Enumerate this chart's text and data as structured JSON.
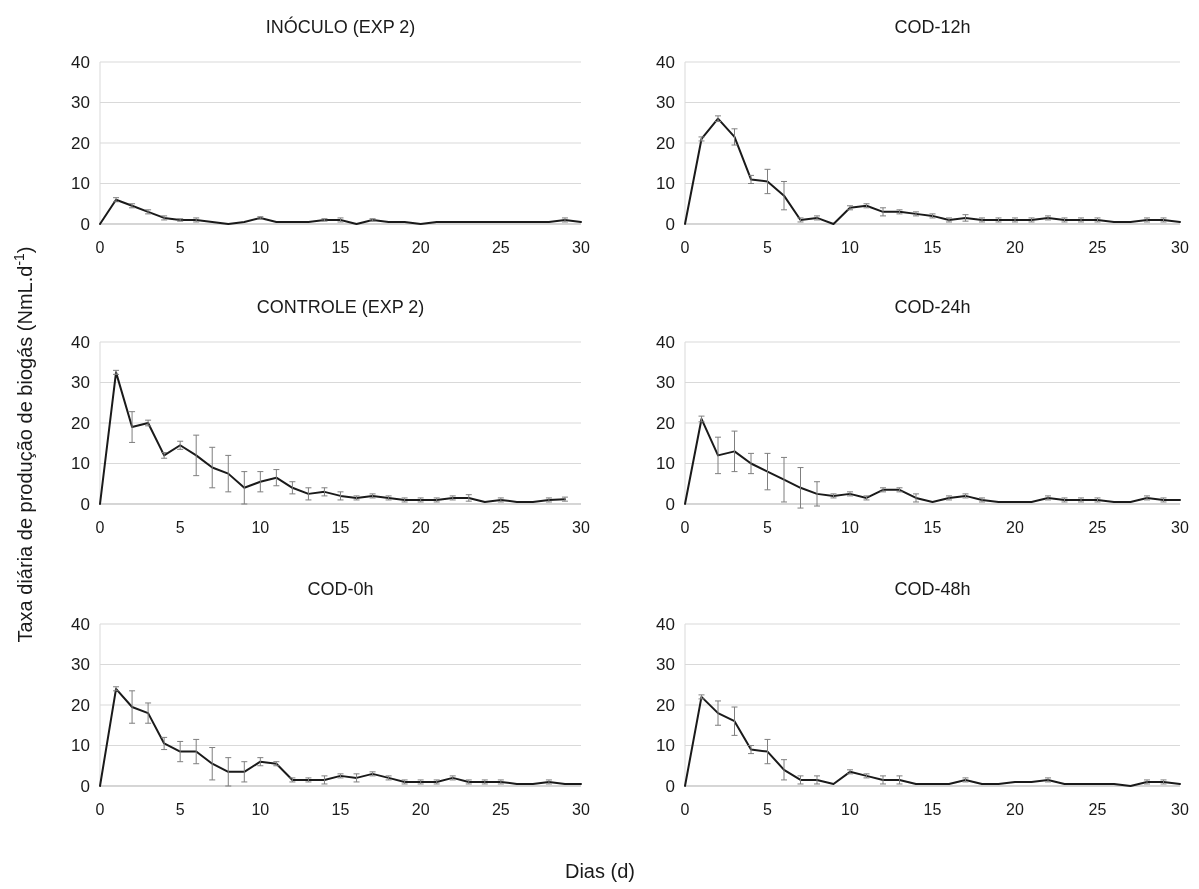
{
  "chart_data": [
    {
      "type": "line",
      "title": "INÓCULO (EXP 2)",
      "xlim": [
        0,
        30
      ],
      "xticks": [
        0,
        5,
        10,
        15,
        20,
        25,
        30
      ],
      "ylim": [
        0,
        40
      ],
      "yticks": [
        0,
        10,
        20,
        30,
        40
      ],
      "grid": "y",
      "x": [
        0,
        1,
        2,
        3,
        4,
        5,
        6,
        7,
        8,
        9,
        10,
        11,
        12,
        13,
        14,
        15,
        16,
        17,
        18,
        19,
        20,
        21,
        22,
        23,
        24,
        25,
        26,
        27,
        28,
        29,
        30
      ],
      "series": [
        {
          "color": "#1a1a1a",
          "values": [
            0,
            6,
            4.5,
            3,
            1.5,
            1,
            1,
            0.5,
            0,
            0.5,
            1.5,
            0.5,
            0.5,
            0.5,
            1,
            1,
            0,
            1,
            0.5,
            0.5,
            0,
            0.5,
            0.5,
            0.5,
            0.5,
            0.5,
            0.5,
            0.5,
            0.5,
            1,
            0.5
          ],
          "errors": [
            null,
            0.5,
            0.5,
            0.5,
            0.5,
            0.3,
            0.5,
            null,
            null,
            null,
            0.3,
            null,
            null,
            null,
            0.3,
            0.5,
            null,
            0.3,
            null,
            null,
            null,
            null,
            null,
            null,
            null,
            null,
            null,
            null,
            null,
            0.5,
            null
          ]
        }
      ]
    },
    {
      "type": "line",
      "title": "COD-12h",
      "xlim": [
        0,
        30
      ],
      "xticks": [
        0,
        5,
        10,
        15,
        20,
        25,
        30
      ],
      "ylim": [
        0,
        40
      ],
      "yticks": [
        0,
        10,
        20,
        30,
        40
      ],
      "grid": "y",
      "x": [
        0,
        1,
        2,
        3,
        4,
        5,
        6,
        7,
        8,
        9,
        10,
        11,
        12,
        13,
        14,
        15,
        16,
        17,
        18,
        19,
        20,
        21,
        22,
        23,
        24,
        25,
        26,
        27,
        28,
        29,
        30
      ],
      "series": [
        {
          "color": "#1a1a1a",
          "values": [
            0,
            21,
            26,
            21.5,
            11,
            10.5,
            7,
            1,
            1.5,
            0,
            4,
            4.5,
            3,
            3,
            2.5,
            2,
            1,
            1.5,
            1,
            1,
            1,
            1,
            1.5,
            1,
            1,
            1,
            0.5,
            0.5,
            1,
            1,
            0.5
          ],
          "errors": [
            null,
            0.5,
            0.7,
            2,
            1,
            3,
            3.5,
            0.5,
            0.5,
            null,
            0.5,
            0.5,
            1,
            0.5,
            0.5,
            0.5,
            0.5,
            0.8,
            0.5,
            0.5,
            0.5,
            0.5,
            0.5,
            0.5,
            0.5,
            0.5,
            null,
            null,
            0.5,
            0.5,
            null
          ]
        }
      ]
    },
    {
      "type": "line",
      "title": "CONTROLE (EXP 2)",
      "ylabel": "Taxa diária de produção de biogás (NmL.d$^{-1}$)",
      "xlim": [
        0,
        30
      ],
      "xticks": [
        0,
        5,
        10,
        15,
        20,
        25,
        30
      ],
      "ylim": [
        0,
        40
      ],
      "yticks": [
        0,
        10,
        20,
        30,
        40
      ],
      "grid": "y",
      "x": [
        0,
        1,
        2,
        3,
        4,
        5,
        6,
        7,
        8,
        9,
        10,
        11,
        12,
        13,
        14,
        15,
        16,
        17,
        18,
        19,
        20,
        21,
        22,
        23,
        24,
        25,
        26,
        27,
        28,
        29
      ],
      "series": [
        {
          "color": "#1a1a1a",
          "values": [
            0,
            32.5,
            19,
            20,
            12,
            14.5,
            12,
            9,
            7.5,
            4,
            5.5,
            6.5,
            4,
            2.5,
            3,
            2,
            1.5,
            2,
            1.5,
            1,
            1,
            1,
            1.5,
            1.5,
            0.5,
            1,
            0.5,
            0.5,
            1,
            1.2
          ],
          "errors": [
            null,
            0.5,
            3.8,
            0.7,
            0.7,
            1,
            5,
            5,
            4.5,
            4,
            2.5,
            2,
            1.5,
            1.5,
            1,
            1,
            0.5,
            0.5,
            0.5,
            0.5,
            0.5,
            0.5,
            0.5,
            0.8,
            null,
            0.5,
            null,
            null,
            0.5,
            0.5
          ]
        }
      ]
    },
    {
      "type": "line",
      "title": "COD-24h",
      "xlim": [
        0,
        30
      ],
      "xticks": [
        0,
        5,
        10,
        15,
        20,
        25,
        30
      ],
      "ylim": [
        0,
        40
      ],
      "yticks": [
        0,
        10,
        20,
        30,
        40
      ],
      "grid": "y",
      "x": [
        0,
        1,
        2,
        3,
        4,
        5,
        6,
        7,
        8,
        9,
        10,
        11,
        12,
        13,
        14,
        15,
        16,
        17,
        18,
        19,
        20,
        21,
        22,
        23,
        24,
        25,
        26,
        27,
        28,
        29,
        30
      ],
      "series": [
        {
          "color": "#1a1a1a",
          "values": [
            0,
            21,
            12,
            13,
            10,
            8,
            6,
            4,
            2.5,
            2,
            2.5,
            1.5,
            3.5,
            3.5,
            1.5,
            0.5,
            1.5,
            2,
            1,
            0.5,
            0.5,
            0.5,
            1.5,
            1,
            1,
            1,
            0.5,
            0.5,
            1.5,
            1,
            1
          ],
          "errors": [
            null,
            0.7,
            4.5,
            5,
            2.5,
            4.5,
            5.5,
            5,
            3,
            0.5,
            0.5,
            0.5,
            0.5,
            0.5,
            1,
            null,
            0.5,
            0.5,
            0.5,
            null,
            null,
            null,
            0.5,
            0.5,
            0.5,
            0.5,
            null,
            null,
            0.5,
            0.5,
            null
          ]
        }
      ]
    },
    {
      "type": "line",
      "title": "COD-0h",
      "xlim": [
        0,
        30
      ],
      "xticks": [
        0,
        5,
        10,
        15,
        20,
        25,
        30
      ],
      "ylim": [
        0,
        40
      ],
      "yticks": [
        0,
        10,
        20,
        30,
        40
      ],
      "grid": "y",
      "x": [
        0,
        1,
        2,
        3,
        4,
        5,
        6,
        7,
        8,
        9,
        10,
        11,
        12,
        13,
        14,
        15,
        16,
        17,
        18,
        19,
        20,
        21,
        22,
        23,
        24,
        25,
        26,
        27,
        28,
        29,
        30
      ],
      "series": [
        {
          "color": "#1a1a1a",
          "values": [
            0,
            24,
            19.5,
            18,
            10.5,
            8.5,
            8.5,
            5.5,
            3.5,
            3.5,
            6,
            5.5,
            1.5,
            1.5,
            1.5,
            2.5,
            2,
            3,
            2,
            1,
            1,
            1,
            2,
            1,
            1,
            1,
            0.5,
            0.5,
            1,
            0.5,
            0.5
          ],
          "errors": [
            null,
            0.5,
            4,
            2.5,
            1.5,
            2.5,
            3,
            4,
            3.5,
            2.5,
            1,
            0.5,
            0.5,
            0.5,
            1,
            0.5,
            1,
            0.5,
            0.5,
            0.5,
            0.5,
            0.5,
            0.5,
            0.5,
            0.5,
            0.5,
            null,
            null,
            0.5,
            null,
            null
          ]
        }
      ]
    },
    {
      "type": "line",
      "title": "COD-48h",
      "xlabel": "Dias (d)",
      "xlim": [
        0,
        30
      ],
      "xticks": [
        0,
        5,
        10,
        15,
        20,
        25,
        30
      ],
      "ylim": [
        0,
        40
      ],
      "yticks": [
        0,
        10,
        20,
        30,
        40
      ],
      "grid": "y",
      "x": [
        0,
        1,
        2,
        3,
        4,
        5,
        6,
        7,
        8,
        9,
        10,
        11,
        12,
        13,
        14,
        15,
        16,
        17,
        18,
        19,
        20,
        21,
        22,
        23,
        24,
        25,
        26,
        27,
        28,
        29,
        30
      ],
      "series": [
        {
          "color": "#1a1a1a",
          "values": [
            0,
            22,
            18,
            16,
            9,
            8.5,
            4,
            1.5,
            1.5,
            0.5,
            3.5,
            2.5,
            1.5,
            1.5,
            0.5,
            0.5,
            0.5,
            1.5,
            0.5,
            0.5,
            1,
            1,
            1.5,
            0.5,
            0.5,
            0.5,
            0.5,
            0,
            1,
            1,
            0.5
          ],
          "errors": [
            null,
            0.5,
            3,
            3.5,
            1,
            3,
            2.5,
            1,
            1,
            null,
            0.5,
            0.5,
            1,
            1,
            null,
            null,
            null,
            0.5,
            null,
            null,
            null,
            null,
            0.5,
            null,
            null,
            null,
            null,
            null,
            0.5,
            0.5,
            null
          ]
        }
      ]
    }
  ]
}
